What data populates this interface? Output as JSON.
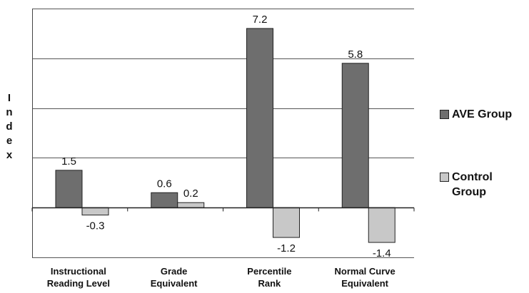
{
  "chart_data": {
    "type": "bar",
    "categories": [
      "Instructional\nReading Level",
      "Grade\nEquivalent",
      "Percentile\nRank",
      "Normal Curve\nEquivalent"
    ],
    "series": [
      {
        "name": "AVE Group",
        "values": [
          1.5,
          0.6,
          7.2,
          5.8
        ],
        "labels": [
          "1.5",
          "0.6",
          "7.2",
          "5.8"
        ],
        "color": "#6e6e6e"
      },
      {
        "name": "Control Group",
        "values": [
          -0.3,
          0.2,
          -1.2,
          -1.4
        ],
        "labels": [
          "-0.3",
          "0.2",
          "-1.2",
          "-1.4"
        ],
        "color": "#c8c8c8"
      }
    ],
    "title": "",
    "xlabel": "",
    "ylabel": "Index",
    "ylim": [
      -2,
      8
    ],
    "grid": true,
    "legend_position": "right"
  },
  "legend": {
    "ave_label": "AVE Group",
    "control_label": "Control Group"
  },
  "axis": {
    "ylabel_vertical": "I\nn\nd\ne\nx"
  }
}
